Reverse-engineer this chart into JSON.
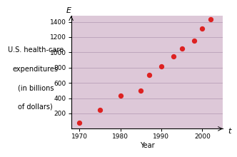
{
  "x": [
    1970,
    1975,
    1980,
    1985,
    1987,
    1990,
    1993,
    1995,
    1998,
    2000,
    2002
  ],
  "y": [
    75,
    250,
    430,
    500,
    700,
    820,
    950,
    1050,
    1150,
    1310,
    1430
  ],
  "dot_color": "#dd2222",
  "plot_bg_color": "#ddc8d8",
  "outer_bg_color": "#ffffff",
  "xlabel": "Year",
  "ylabel_top": "E",
  "xlabel_right": "t",
  "left_label_line1": "U.S. health-care",
  "left_label_line2": "expenditures",
  "left_label_line3": "(in billions",
  "left_label_line4": "of dollars)",
  "xlim": [
    1968,
    2005
  ],
  "ylim": [
    0,
    1480
  ],
  "xticks": [
    1970,
    1980,
    1990,
    2000
  ],
  "yticks": [
    200,
    400,
    600,
    800,
    1000,
    1200,
    1400
  ],
  "dot_size": 18,
  "grid_color": "#b8a0b8",
  "tick_fontsize": 6.5,
  "label_fontsize": 7,
  "axis_label_fontsize": 8
}
